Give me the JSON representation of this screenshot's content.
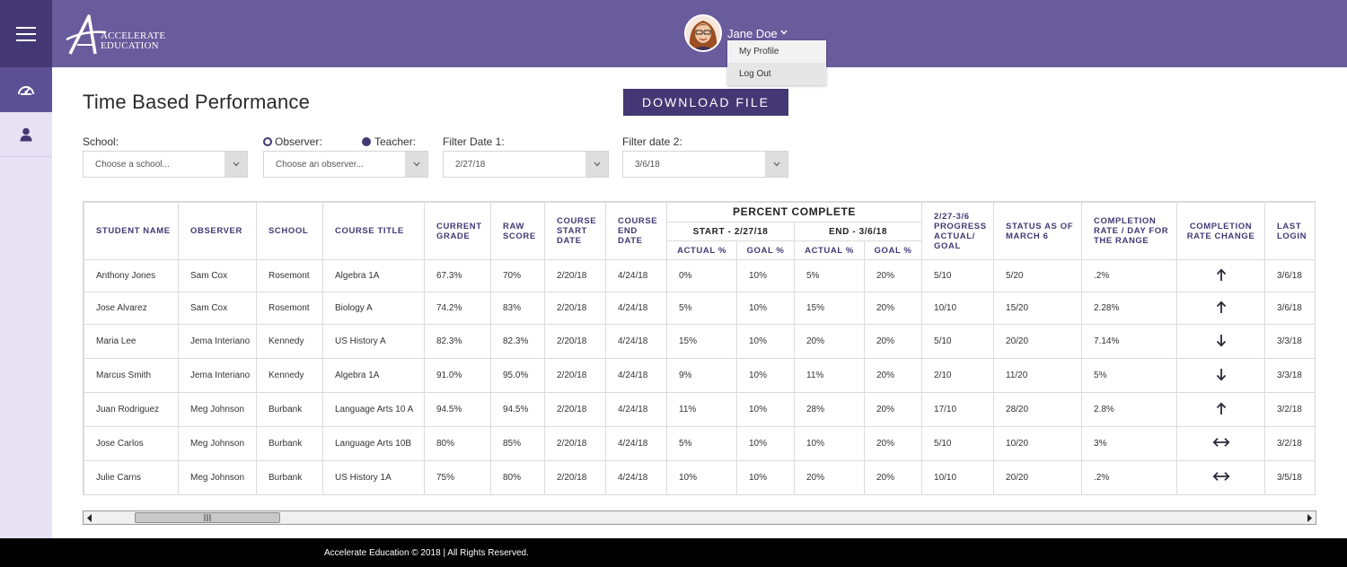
{
  "app": {
    "brand_line1": "ACCELERATE",
    "brand_line2": "EDUCATION",
    "colors": {
      "header": "#685c9c",
      "primary": "#433874",
      "sidebar": "#e7e2f4",
      "footer": "#000000"
    }
  },
  "sidebar": {
    "icons": [
      "menu-icon",
      "dashboard-gauge-icon",
      "user-icon"
    ]
  },
  "user": {
    "name": "Jane Doe",
    "menu": [
      "My Profile",
      "Log Out"
    ]
  },
  "page": {
    "title": "Time Based Performance",
    "download_label": "DOWNLOAD FILE"
  },
  "filters": {
    "school_label": "School:",
    "school_placeholder": "Choose a school...",
    "observer_label": "Observer:",
    "teacher_label": "Teacher:",
    "observer_placeholder": "Choose an observer...",
    "date1_label": "Filter Date 1:",
    "date1_value": "2/27/18",
    "date2_label": "Filter date 2:",
    "date2_value": "3/6/18"
  },
  "table": {
    "headers": {
      "student": "STUDENT NAME",
      "observer": "OBSERVER",
      "school": "SCHOOL",
      "course": "COURSE TITLE",
      "grade": "CURRENT GRADE",
      "raw": "RAW SCORE",
      "start": "COURSE START DATE",
      "end": "COURSE END DATE",
      "percent_group": "PERCENT COMPLETE",
      "start_group": "START - 2/27/18",
      "end_group": "END - 3/6/18",
      "actual": "ACTUAL %",
      "goal": "GOAL %",
      "progress": "2/27-3/6 PROGRESS ACTUAL/ GOAL",
      "status": "STATUS AS OF MARCH 6",
      "rate": "COMPLETION RATE / DAY FOR THE RANGE",
      "rate_change": "COMPLETION RATE CHANGE",
      "last_login": "LAST LOGIN"
    },
    "rows": [
      {
        "student": "Anthony Jones",
        "observer": "Sam Cox",
        "school": "Rosemont",
        "course": "Algebra 1A",
        "grade": "67.3%",
        "raw": "70%",
        "start": "2/20/18",
        "end": "4/24/18",
        "s_actual": "0%",
        "s_goal": "10%",
        "e_actual": "5%",
        "e_goal": "20%",
        "progress": "5/10",
        "status": "5/20",
        "rate": ".2%",
        "change": "up",
        "login": "3/6/18"
      },
      {
        "student": "Jose Alvarez",
        "observer": "Sam Cox",
        "school": "Rosemont",
        "course": "Biology A",
        "grade": "74.2%",
        "raw": "83%",
        "start": "2/20/18",
        "end": "4/24/18",
        "s_actual": "5%",
        "s_goal": "10%",
        "e_actual": "15%",
        "e_goal": "20%",
        "progress": "10/10",
        "status": "15/20",
        "rate": "2.28%",
        "change": "up",
        "login": "3/6/18"
      },
      {
        "student": "Maria Lee",
        "observer": "Jema Interiano",
        "school": "Kennedy",
        "course": "US History A",
        "grade": "82.3%",
        "raw": "82.3%",
        "start": "2/20/18",
        "end": "4/24/18",
        "s_actual": "15%",
        "s_goal": "10%",
        "e_actual": "20%",
        "e_goal": "20%",
        "progress": "5/10",
        "status": "20/20",
        "rate": "7.14%",
        "change": "down",
        "login": "3/3/18"
      },
      {
        "student": "Marcus Smith",
        "observer": "Jema Interiano",
        "school": "Kennedy",
        "course": "Algebra 1A",
        "grade": "91.0%",
        "raw": "95.0%",
        "start": "2/20/18",
        "end": "4/24/18",
        "s_actual": "9%",
        "s_goal": "10%",
        "e_actual": "11%",
        "e_goal": "20%",
        "progress": "2/10",
        "status": "11/20",
        "rate": "5%",
        "change": "down",
        "login": "3/3/18"
      },
      {
        "student": "Juan Rodriguez",
        "observer": "Meg Johnson",
        "school": "Burbank",
        "course": "Language Arts 10 A",
        "grade": "94.5%",
        "raw": "94.5%",
        "start": "2/20/18",
        "end": "4/24/18",
        "s_actual": "11%",
        "s_goal": "10%",
        "e_actual": "28%",
        "e_goal": "20%",
        "progress": "17/10",
        "status": "28/20",
        "rate": "2.8%",
        "change": "up",
        "login": "3/2/18"
      },
      {
        "student": "Jose Carlos",
        "observer": "Meg Johnson",
        "school": "Burbank",
        "course": "Language Arts 10B",
        "grade": "80%",
        "raw": "85%",
        "start": "2/20/18",
        "end": "4/24/18",
        "s_actual": "5%",
        "s_goal": "10%",
        "e_actual": "10%",
        "e_goal": "20%",
        "progress": "5/10",
        "status": "10/20",
        "rate": "3%",
        "change": "both",
        "login": "3/2/18"
      },
      {
        "student": "Julie Carns",
        "observer": "Meg Johnson",
        "school": "Burbank",
        "course": "US History 1A",
        "grade": "75%",
        "raw": "80%",
        "start": "2/20/18",
        "end": "4/24/18",
        "s_actual": "10%",
        "s_goal": "10%",
        "e_actual": "20%",
        "e_goal": "20%",
        "progress": "10/10",
        "status": "20/20",
        "rate": ".2%",
        "change": "both",
        "login": "3/5/18"
      }
    ]
  },
  "footer": {
    "text": "Accelerate Education © 2018  |  All Rights Reserved."
  }
}
